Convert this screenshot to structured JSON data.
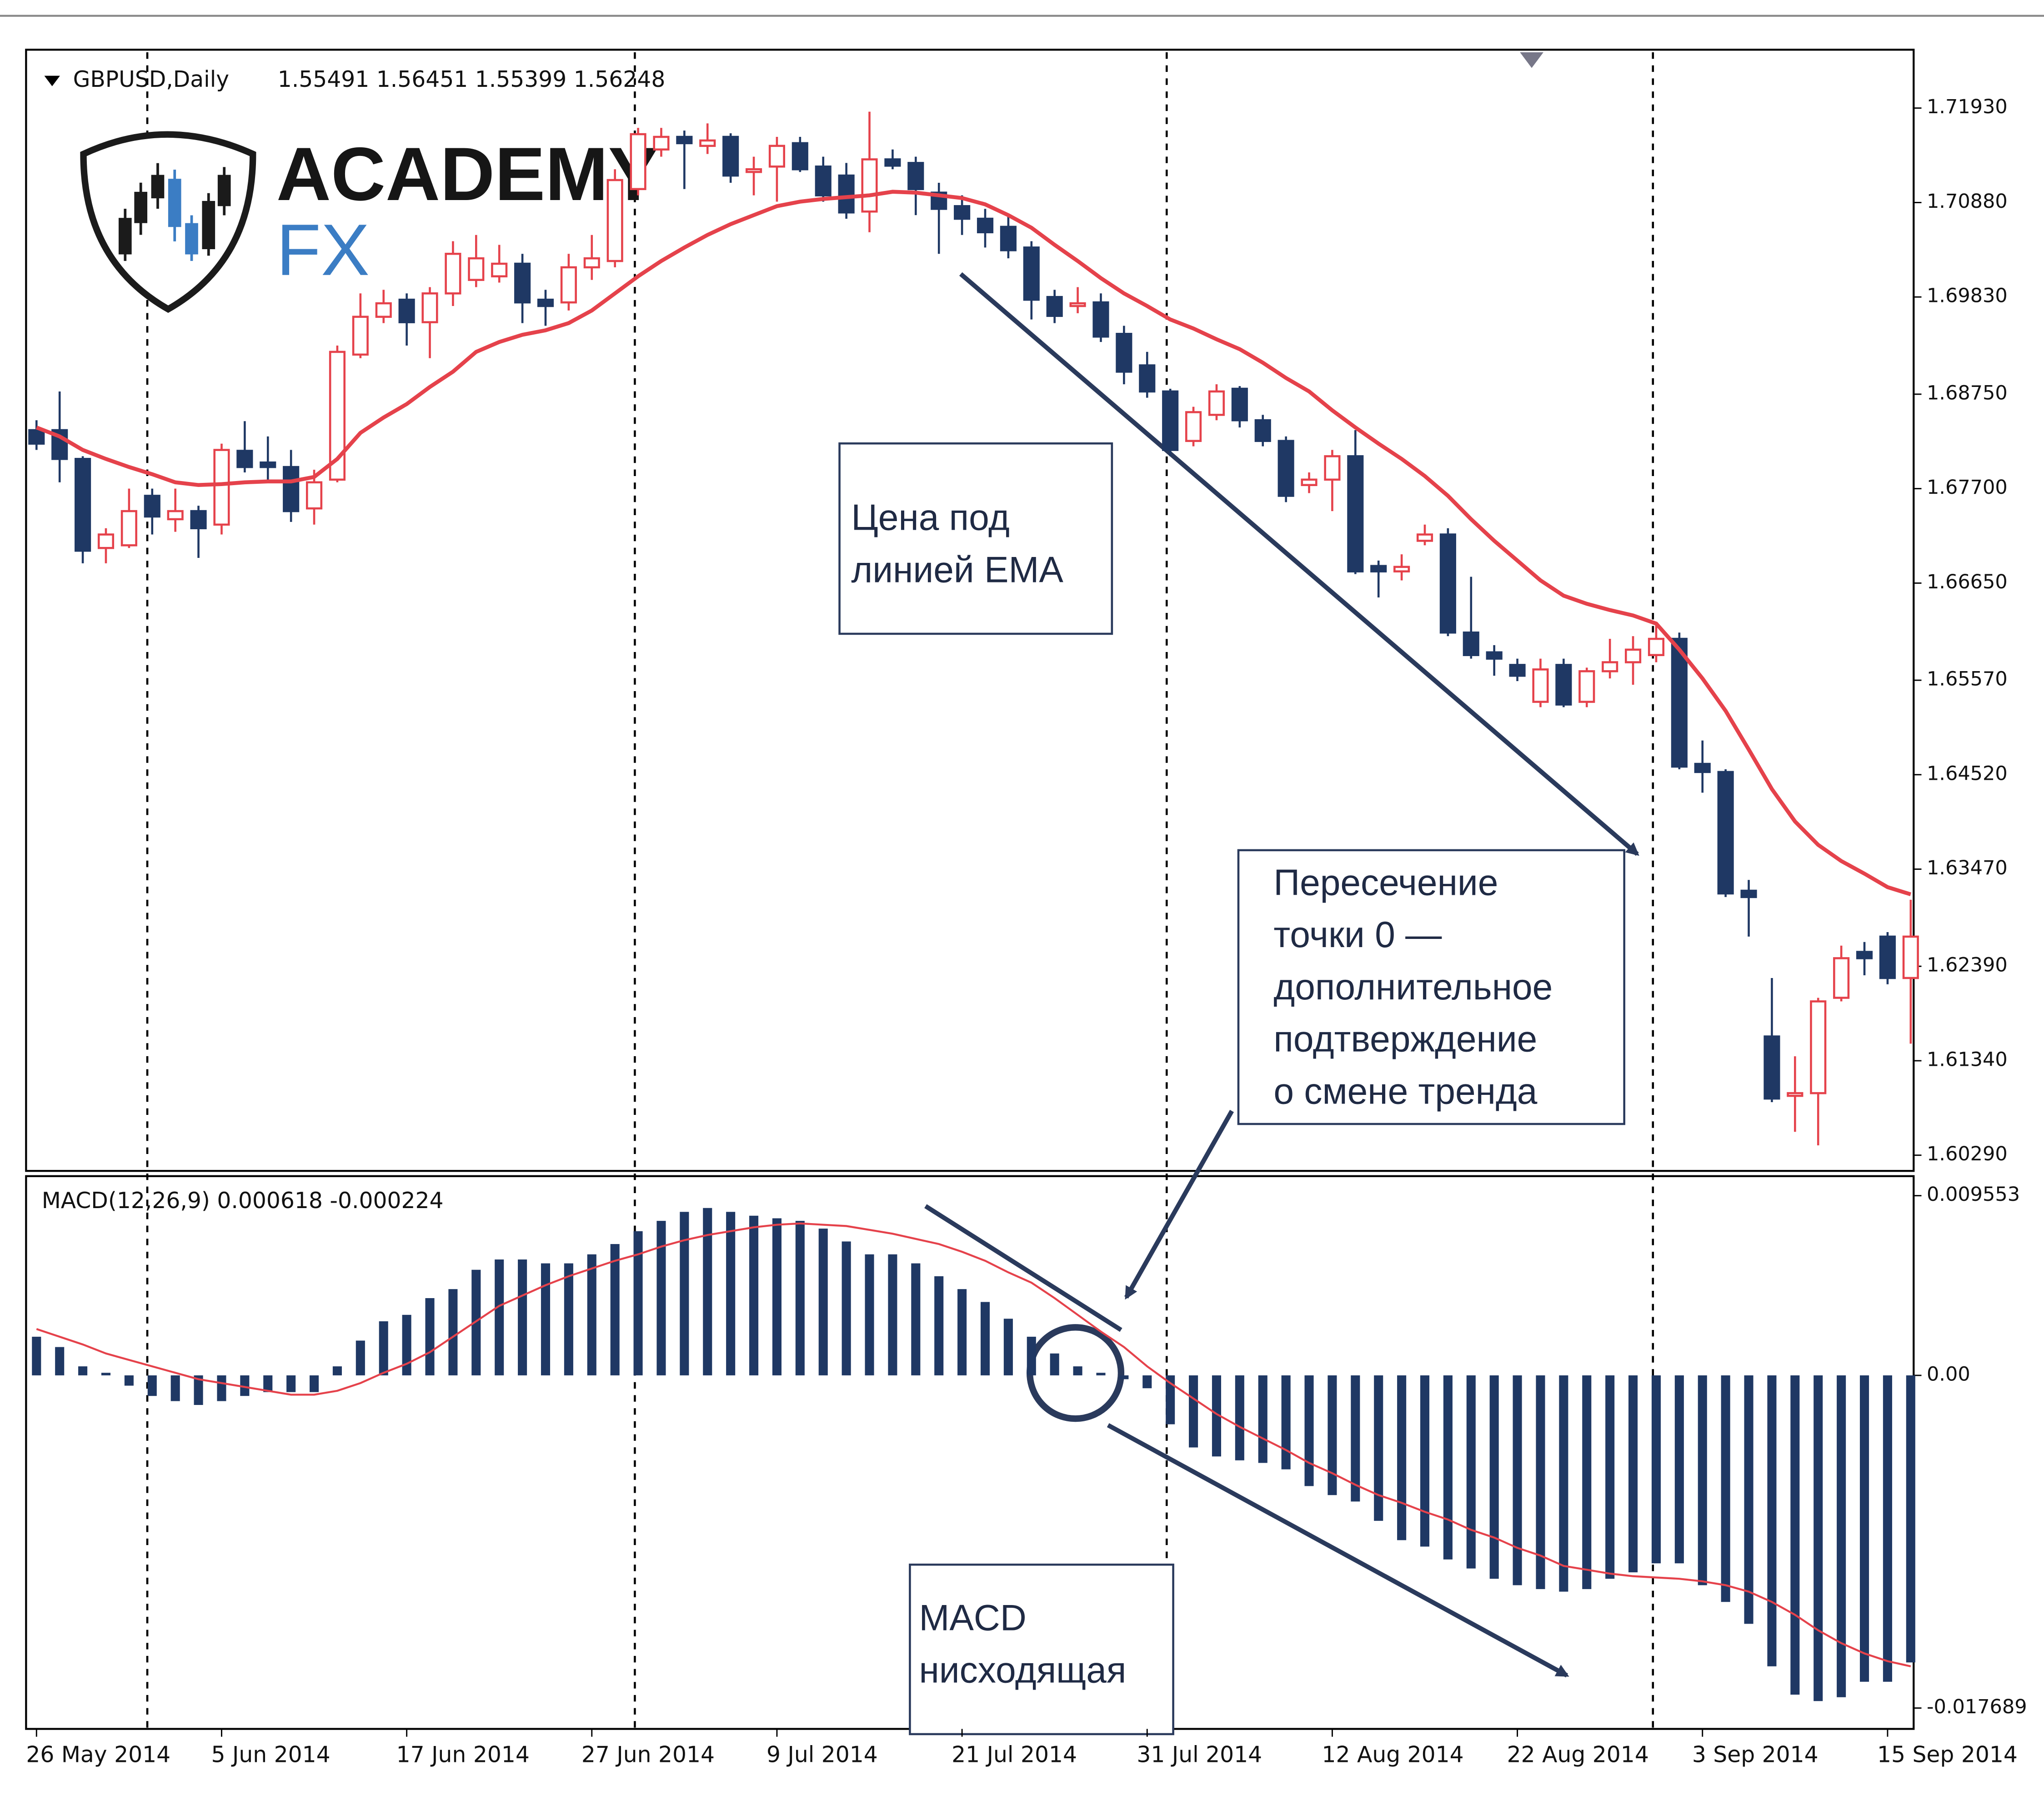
{
  "logo": {
    "title": "ACADEMY",
    "subtitle": "FX"
  },
  "chart_data": [
    {
      "type": "candlestick",
      "title": "GBPUSD,Daily",
      "subtitle": "1.55491 1.56451 1.55399 1.56248",
      "bull_color": "#e5424b",
      "bear_color": "#1f3864",
      "ema_color": "#e5424b",
      "ylim": [
        1.6013,
        1.7255
      ],
      "yticks": [
        {
          "value": 1.7193,
          "label": "1.71930"
        },
        {
          "value": 1.7088,
          "label": "1.70880"
        },
        {
          "value": 1.6983,
          "label": "1.69830"
        },
        {
          "value": 1.6875,
          "label": "1.68750"
        },
        {
          "value": 1.677,
          "label": "1.67700"
        },
        {
          "value": 1.6665,
          "label": "1.66650"
        },
        {
          "value": 1.6557,
          "label": "1.65570"
        },
        {
          "value": 1.6452,
          "label": "1.64520"
        },
        {
          "value": 1.6347,
          "label": "1.63470"
        },
        {
          "value": 1.6239,
          "label": "1.62390"
        },
        {
          "value": 1.6134,
          "label": "1.61340"
        },
        {
          "value": 1.6029,
          "label": "1.60290"
        }
      ],
      "open": [
        1.6835,
        1.6835,
        1.6803,
        1.6704,
        1.6707,
        1.6762,
        1.6736,
        1.6745,
        1.673,
        1.6812,
        1.6799,
        1.6794,
        1.6748,
        1.678,
        1.6919,
        1.6961,
        1.698,
        1.6955,
        1.6987,
        1.7002,
        1.7006,
        1.702,
        1.698,
        1.6977,
        1.7016,
        1.7023,
        1.7103,
        1.7147,
        1.7161,
        1.7151,
        1.7161,
        1.7122,
        1.7128,
        1.7154,
        1.7128,
        1.7118,
        1.7078,
        1.7136,
        1.7132,
        1.7099,
        1.7084,
        1.707,
        1.7061,
        1.7038,
        1.6983,
        1.6973,
        1.6977,
        1.6942,
        1.6907,
        1.6878,
        1.6823,
        1.6852,
        1.6881,
        1.6846,
        1.6823,
        1.6774,
        1.678,
        1.6806,
        1.6684,
        1.6678,
        1.6712,
        1.6719,
        1.661,
        1.6588,
        1.6574,
        1.6533,
        1.6574,
        1.6533,
        1.6567,
        1.6577,
        1.6585,
        1.6603,
        1.6464,
        1.6455,
        1.6323,
        1.6161,
        1.6095,
        1.6098,
        1.6204,
        1.6255,
        1.6272,
        1.6226
      ],
      "high": [
        1.6846,
        1.6878,
        1.6806,
        1.6726,
        1.677,
        1.677,
        1.677,
        1.6751,
        1.682,
        1.6845,
        1.6828,
        1.6813,
        1.6791,
        1.6929,
        1.6987,
        1.6991,
        1.6987,
        1.6994,
        1.7045,
        1.7052,
        1.7041,
        1.7031,
        1.6991,
        1.7031,
        1.7052,
        1.7125,
        1.7171,
        1.7171,
        1.7168,
        1.7176,
        1.7165,
        1.7139,
        1.7161,
        1.7161,
        1.7139,
        1.7132,
        1.7189,
        1.7147,
        1.7139,
        1.711,
        1.7096,
        1.7081,
        1.7074,
        1.7045,
        1.6991,
        1.6994,
        1.6987,
        1.6951,
        1.6922,
        1.6881,
        1.6861,
        1.6886,
        1.6884,
        1.6852,
        1.6828,
        1.6788,
        1.6813,
        1.6835,
        1.669,
        1.6697,
        1.673,
        1.6726,
        1.6672,
        1.6596,
        1.6581,
        1.6581,
        1.6581,
        1.6571,
        1.6603,
        1.6606,
        1.662,
        1.661,
        1.649,
        1.6458,
        1.6335,
        1.6226,
        1.6139,
        1.6204,
        1.6262,
        1.6266,
        1.6277,
        1.6313
      ],
      "low": [
        1.6813,
        1.6777,
        1.6687,
        1.6687,
        1.6704,
        1.6719,
        1.6722,
        1.6693,
        1.6719,
        1.6788,
        1.678,
        1.6733,
        1.673,
        1.6777,
        1.6915,
        1.6954,
        1.6929,
        1.6915,
        1.6973,
        1.6994,
        1.6999,
        1.6954,
        1.6951,
        1.6968,
        1.7002,
        1.7016,
        1.7096,
        1.7139,
        1.7103,
        1.7142,
        1.711,
        1.7096,
        1.7089,
        1.7122,
        1.7089,
        1.707,
        1.7055,
        1.7125,
        1.7074,
        1.7031,
        1.7052,
        1.7038,
        1.7026,
        1.6958,
        1.6954,
        1.6965,
        1.6933,
        1.6886,
        1.6871,
        1.6806,
        1.6817,
        1.6846,
        1.6838,
        1.6817,
        1.6755,
        1.6765,
        1.6745,
        1.6675,
        1.6649,
        1.6668,
        1.6707,
        1.6606,
        1.6581,
        1.6562,
        1.6556,
        1.6527,
        1.6527,
        1.6527,
        1.6559,
        1.6552,
        1.6577,
        1.6458,
        1.6432,
        1.6316,
        1.6272,
        1.6088,
        1.6055,
        1.604,
        1.62,
        1.6229,
        1.6219,
        1.6153
      ],
      "close": [
        1.682,
        1.6803,
        1.6701,
        1.6719,
        1.6745,
        1.6739,
        1.6745,
        1.6726,
        1.6813,
        1.6794,
        1.6794,
        1.6745,
        1.6777,
        1.6922,
        1.6961,
        1.6976,
        1.6955,
        1.6987,
        1.7031,
        1.7026,
        1.702,
        1.6977,
        1.6973,
        1.7016,
        1.7026,
        1.7113,
        1.7164,
        1.7161,
        1.7154,
        1.7157,
        1.7118,
        1.7125,
        1.7151,
        1.7125,
        1.7096,
        1.7077,
        1.7136,
        1.7129,
        1.7103,
        1.7081,
        1.707,
        1.7055,
        1.7035,
        1.698,
        1.6962,
        1.6976,
        1.6939,
        1.69,
        1.6878,
        1.6813,
        1.6855,
        1.6878,
        1.6846,
        1.6823,
        1.6762,
        1.678,
        1.6806,
        1.6678,
        1.6678,
        1.6683,
        1.6719,
        1.661,
        1.6585,
        1.6581,
        1.6562,
        1.6569,
        1.653,
        1.6567,
        1.6577,
        1.6591,
        1.6603,
        1.6461,
        1.6455,
        1.632,
        1.6316,
        1.6092,
        1.6098,
        1.62,
        1.6248,
        1.6248,
        1.6226,
        1.6272
      ],
      "ema": [
        1.6838,
        1.6828,
        1.6813,
        1.6803,
        1.6794,
        1.6786,
        1.6777,
        1.6774,
        1.6775,
        1.6777,
        1.6778,
        1.6778,
        1.6783,
        1.6803,
        1.6832,
        1.6849,
        1.6864,
        1.6883,
        1.69,
        1.6922,
        1.6933,
        1.6941,
        1.6946,
        1.6954,
        1.6968,
        1.6987,
        1.7006,
        1.7023,
        1.7038,
        1.7052,
        1.7064,
        1.7074,
        1.7084,
        1.7089,
        1.7092,
        1.7094,
        1.7096,
        1.71,
        1.7099,
        1.7096,
        1.7093,
        1.7086,
        1.7074,
        1.706,
        1.7041,
        1.7023,
        1.7004,
        1.6987,
        1.6973,
        1.6958,
        1.6948,
        1.6936,
        1.6925,
        1.691,
        1.6893,
        1.6878,
        1.6857,
        1.6838,
        1.682,
        1.6803,
        1.6784,
        1.6762,
        1.6736,
        1.6712,
        1.669,
        1.6668,
        1.6651,
        1.6642,
        1.6635,
        1.6629,
        1.662,
        1.6591,
        1.6559,
        1.6523,
        1.648,
        1.6436,
        1.64,
        1.6374,
        1.6356,
        1.6342,
        1.6327,
        1.6319
      ],
      "annotations": [
        [
          "Цена под",
          "линией EMA"
        ],
        [
          "Пересечение",
          "точки 0 —",
          "дополнительное",
          "подтверждение",
          "о смене тренда"
        ]
      ]
    },
    {
      "type": "macd",
      "title": "MACD(12,26,9) 0.000618 -0.000224",
      "bar_color": "#1f3864",
      "signal_color": "#e5424b",
      "ylim": [
        -0.017689,
        0.009553
      ],
      "yticks": [
        0.009553,
        {
          "value": 0,
          "label": "0.00"
        },
        -0.017689
      ],
      "categories": [
        "26 May 2014",
        null,
        null,
        null,
        null,
        null,
        null,
        null,
        "5 Jun 2014",
        null,
        null,
        null,
        null,
        null,
        null,
        null,
        "17 Jun 2014",
        null,
        null,
        null,
        null,
        null,
        null,
        null,
        "27 Jun 2014",
        null,
        null,
        null,
        null,
        null,
        null,
        null,
        "9 Jul 2014",
        null,
        null,
        null,
        null,
        null,
        null,
        null,
        "21 Jul 2014",
        null,
        null,
        null,
        null,
        null,
        null,
        null,
        "31 Jul 2014",
        null,
        null,
        null,
        null,
        null,
        null,
        null,
        "12 Aug 2014",
        null,
        null,
        null,
        null,
        null,
        null,
        null,
        "22 Aug 2014",
        null,
        null,
        null,
        null,
        null,
        null,
        null,
        "3 Sep 2014",
        null,
        null,
        null,
        null,
        null,
        null,
        null,
        "15 Sep 2014",
        null
      ],
      "histogram": [
        0.002054,
        0.001506,
        0.000479,
        0.000137,
        -0.000548,
        -0.001095,
        -0.001369,
        -0.001574,
        -0.001369,
        -0.001095,
        -0.00089,
        -0.00089,
        -0.00089,
        0.000479,
        0.001848,
        0.002875,
        0.003217,
        0.004107,
        0.004586,
        0.005613,
        0.006161,
        0.006161,
        0.005955,
        0.005955,
        0.006434,
        0.006982,
        0.007666,
        0.008214,
        0.008693,
        0.008899,
        0.008693,
        0.008488,
        0.008351,
        0.008214,
        0.007803,
        0.007119,
        0.006434,
        0.006434,
        0.005955,
        0.005271,
        0.004586,
        0.003902,
        0.003012,
        0.002054,
        0.001164,
        0.000479,
        0.000137,
        -0.000205,
        -0.000685,
        -0.002601,
        -0.003833,
        -0.004312,
        -0.004518,
        -0.004655,
        -0.004997,
        -0.005887,
        -0.006366,
        -0.006708,
        -0.007735,
        -0.008762,
        -0.009104,
        -0.009788,
        -0.010268,
        -0.010815,
        -0.011157,
        -0.011363,
        -0.0115,
        -0.011363,
        -0.010815,
        -0.010473,
        -0.009994,
        -0.009994,
        -0.011157,
        -0.012047,
        -0.013211,
        -0.01547,
        -0.016976,
        -0.017318,
        -0.017113,
        -0.016291,
        -0.016291,
        -0.015264
      ],
      "signal": [
        0.002464,
        0.002054,
        0.001643,
        0.001164,
        0.000821,
        0.000479,
        0.000137,
        -0.000205,
        -0.000411,
        -0.000616,
        -0.000821,
        -0.001027,
        -0.001027,
        -0.000821,
        -0.000411,
        0.000137,
        0.000616,
        0.001232,
        0.002054,
        0.002875,
        0.003696,
        0.004244,
        0.004792,
        0.005271,
        0.005681,
        0.006092,
        0.006434,
        0.006845,
        0.007187,
        0.007461,
        0.007666,
        0.007872,
        0.008009,
        0.008077,
        0.008009,
        0.00794,
        0.007735,
        0.00753,
        0.007256,
        0.006982,
        0.006571,
        0.006092,
        0.005476,
        0.004928,
        0.004107,
        0.003217,
        0.002327,
        0.001506,
        0.000479,
        -0.000411,
        -0.001232,
        -0.002054,
        -0.002738,
        -0.003354,
        -0.00397,
        -0.004655,
        -0.005202,
        -0.005818,
        -0.006366,
        -0.006777,
        -0.007256,
        -0.007666,
        -0.008214,
        -0.008625,
        -0.009172,
        -0.009583,
        -0.010131,
        -0.010336,
        -0.010541,
        -0.010678,
        -0.010747,
        -0.010815,
        -0.010952,
        -0.011157,
        -0.0115,
        -0.012047,
        -0.012732,
        -0.013553,
        -0.014238,
        -0.014785,
        -0.015196,
        -0.01547
      ],
      "annotations": [
        [
          "MACD",
          "нисходящая"
        ]
      ]
    }
  ]
}
